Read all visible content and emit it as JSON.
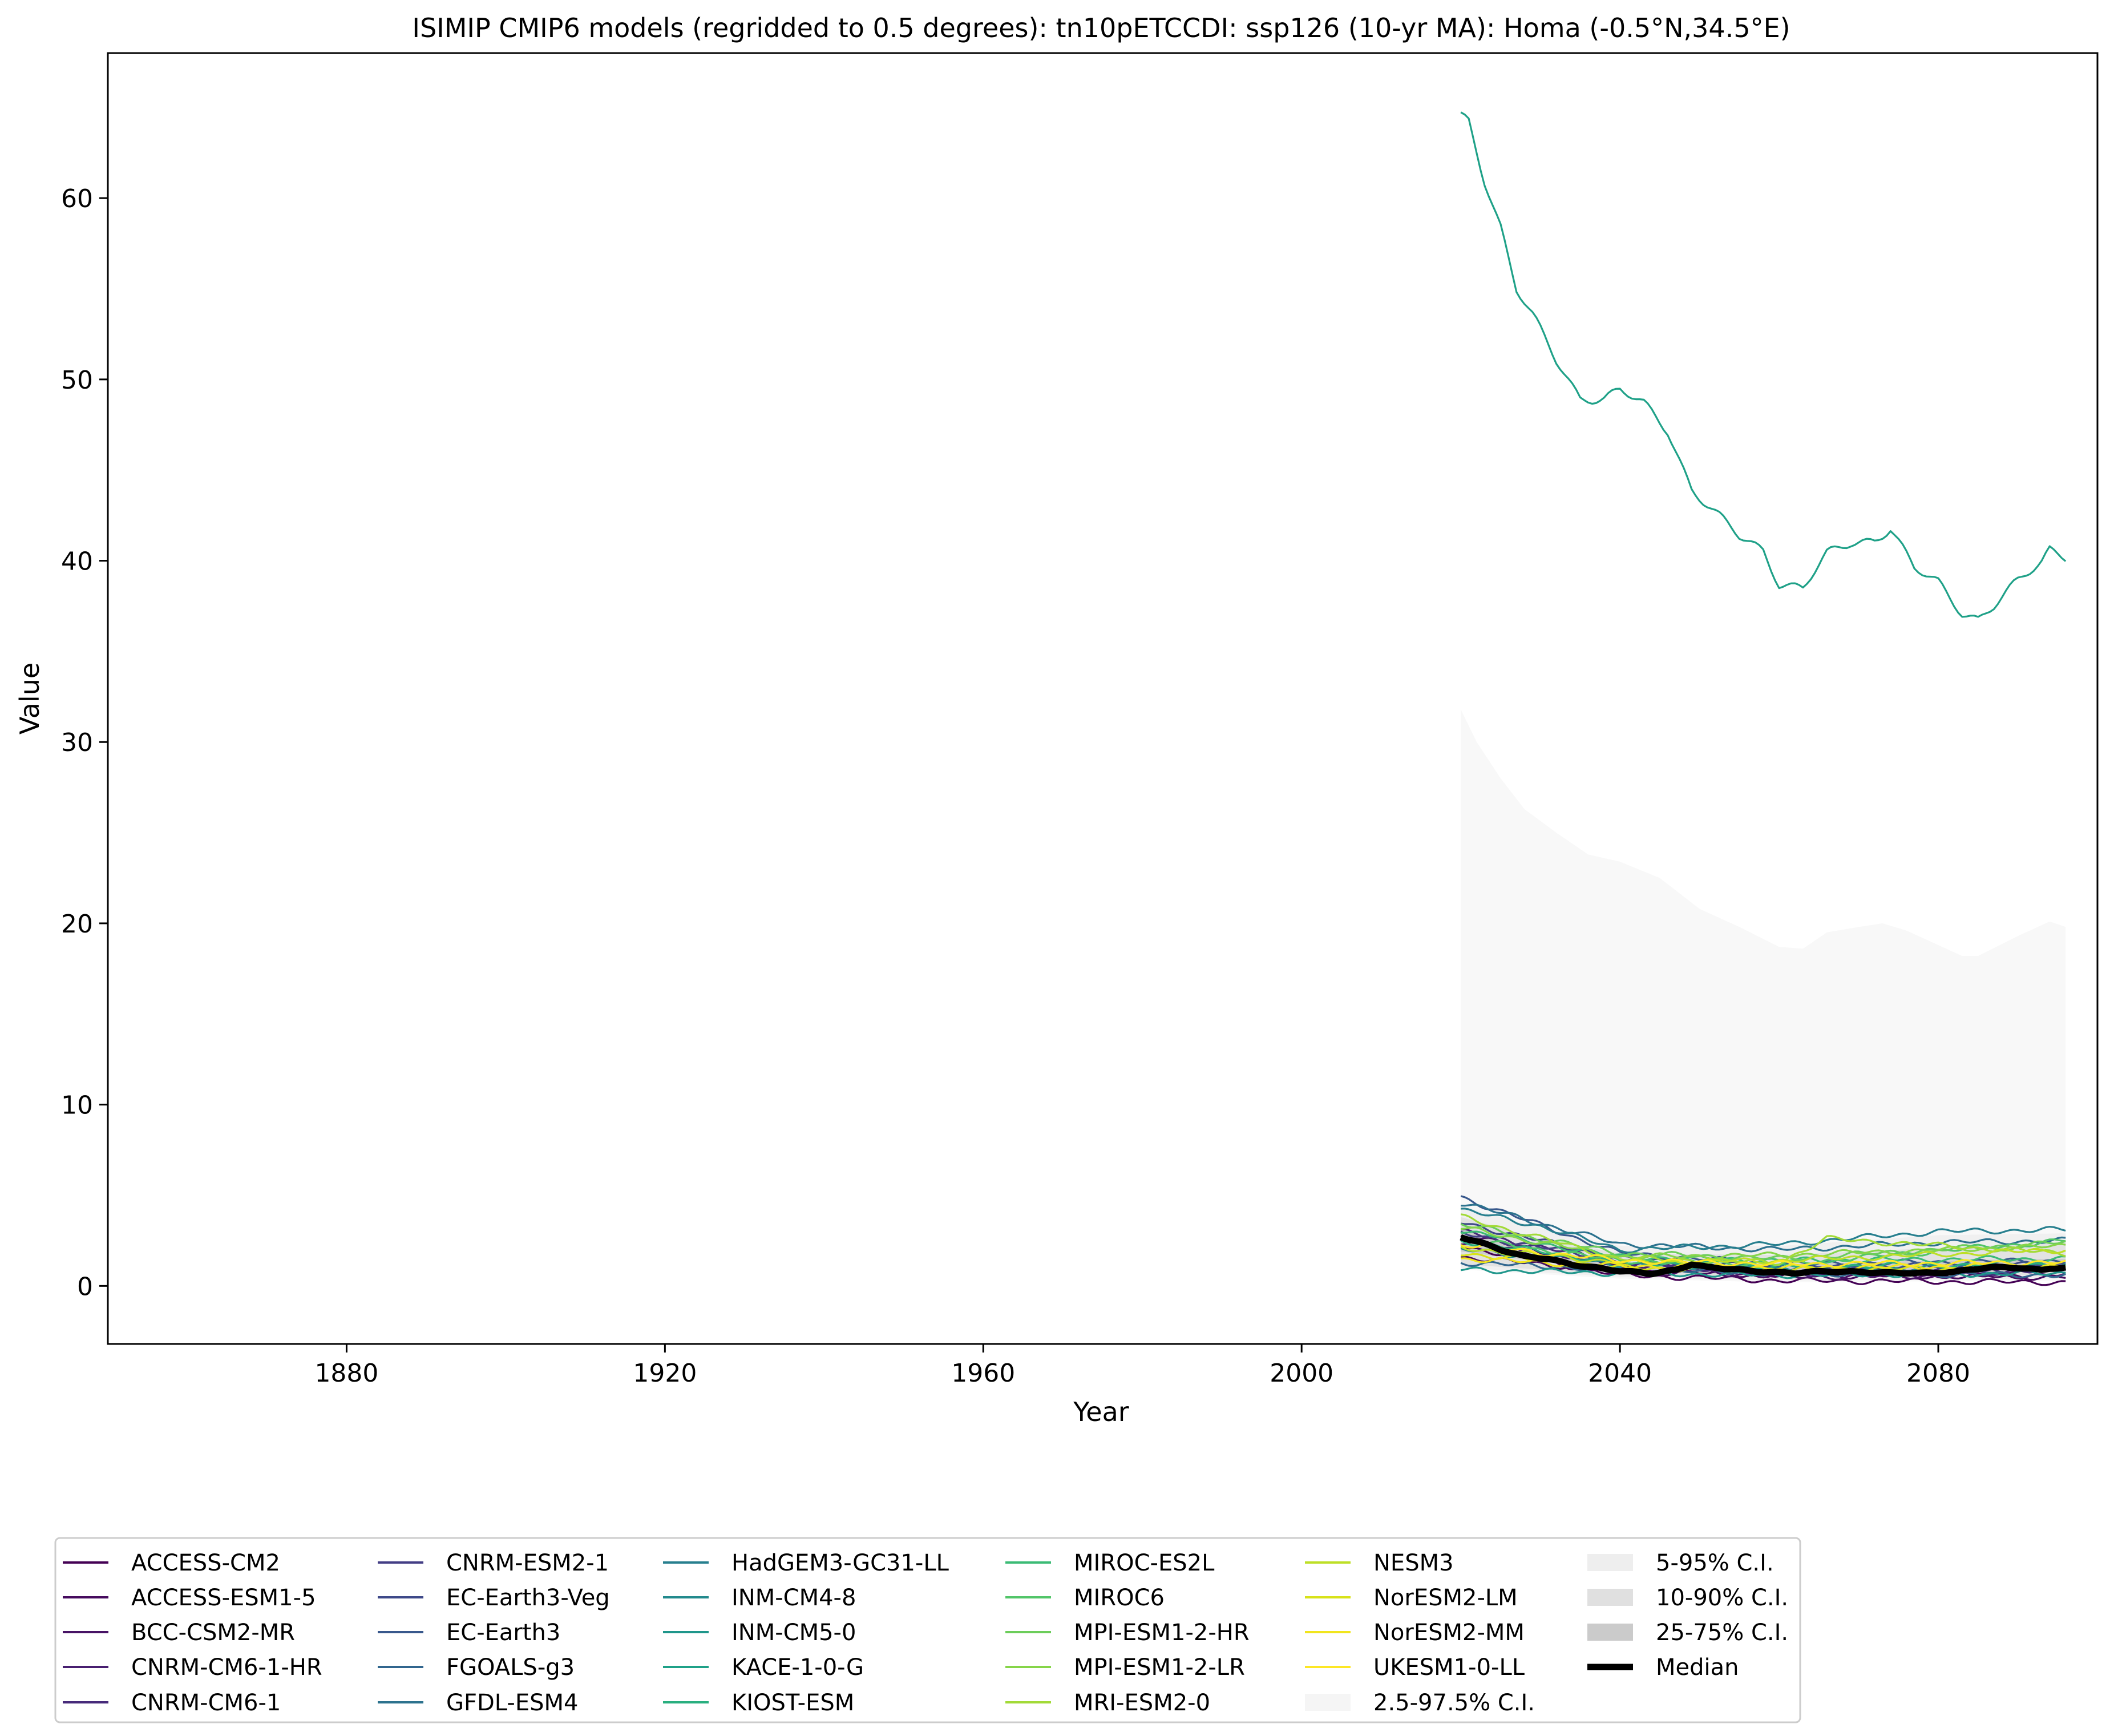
{
  "chart_data": {
    "type": "line",
    "title": "ISIMIP CMIP6 models (regridded to 0.5 degrees): tn10pETCCDI: ssp126 (10-yr MA): Homa (-0.5°N,34.5°E)",
    "xlabel": "Year",
    "ylabel": "Value",
    "xlim": [
      1850,
      2100
    ],
    "ylim": [
      -3.2,
      68
    ],
    "x_ticks": [
      1880,
      1920,
      1960,
      2000,
      2040,
      2080
    ],
    "y_ticks": [
      0,
      10,
      20,
      30,
      40,
      50,
      60
    ],
    "x_start": 2020,
    "x_end": 2096,
    "grid": false,
    "legend_position": "bottom",
    "series": [
      {
        "name": "ACCESS-CM2",
        "color": "#440154",
        "keypoints": [
          [
            2020,
            2.2
          ],
          [
            2040,
            0.6
          ],
          [
            2060,
            0.3
          ],
          [
            2096,
            0.2
          ]
        ]
      },
      {
        "name": "ACCESS-ESM1-5",
        "color": "#460b5e",
        "keypoints": [
          [
            2020,
            1.6
          ],
          [
            2040,
            0.8
          ],
          [
            2060,
            0.6
          ],
          [
            2096,
            0.5
          ]
        ]
      },
      {
        "name": "BCC-CSM2-MR",
        "color": "#471365",
        "keypoints": [
          [
            2020,
            2.8
          ],
          [
            2040,
            1.1
          ],
          [
            2060,
            0.5
          ],
          [
            2096,
            0.6
          ]
        ]
      },
      {
        "name": "CNRM-CM6-1-HR",
        "color": "#481f70",
        "keypoints": [
          [
            2020,
            2.4
          ],
          [
            2040,
            1.2
          ],
          [
            2060,
            0.8
          ],
          [
            2096,
            0.9
          ]
        ]
      },
      {
        "name": "CNRM-CM6-1",
        "color": "#472a7a",
        "keypoints": [
          [
            2020,
            3.0
          ],
          [
            2040,
            1.3
          ],
          [
            2060,
            0.7
          ],
          [
            2096,
            0.8
          ]
        ]
      },
      {
        "name": "CNRM-ESM2-1",
        "color": "#433e85",
        "keypoints": [
          [
            2020,
            2.9
          ],
          [
            2040,
            1.4
          ],
          [
            2060,
            0.9
          ],
          [
            2096,
            1.0
          ]
        ]
      },
      {
        "name": "EC-Earth3-Veg",
        "color": "#3e4989",
        "keypoints": [
          [
            2020,
            3.5
          ],
          [
            2040,
            1.5
          ],
          [
            2060,
            1.0
          ],
          [
            2096,
            1.2
          ]
        ]
      },
      {
        "name": "EC-Earth3",
        "color": "#38588c",
        "keypoints": [
          [
            2020,
            4.9
          ],
          [
            2040,
            1.8
          ],
          [
            2060,
            1.2
          ],
          [
            2096,
            1.4
          ]
        ]
      },
      {
        "name": "FGOALS-g3",
        "color": "#31668e",
        "keypoints": [
          [
            2020,
            1.3
          ],
          [
            2040,
            0.9
          ],
          [
            2060,
            0.7
          ],
          [
            2096,
            0.6
          ]
        ]
      },
      {
        "name": "GFDL-ESM4",
        "color": "#2c728e",
        "keypoints": [
          [
            2020,
            4.6
          ],
          [
            2040,
            2.3
          ],
          [
            2060,
            2.0
          ],
          [
            2080,
            2.4
          ],
          [
            2096,
            2.5
          ]
        ]
      },
      {
        "name": "HadGEM3-GC31-LL",
        "color": "#277f8e",
        "keypoints": [
          [
            2020,
            4.2
          ],
          [
            2030,
            3.3
          ],
          [
            2040,
            2.0
          ],
          [
            2060,
            2.3
          ],
          [
            2080,
            3.0
          ],
          [
            2096,
            3.1
          ]
        ]
      },
      {
        "name": "INM-CM4-8",
        "color": "#238a8d",
        "keypoints": [
          [
            2020,
            2.0
          ],
          [
            2040,
            1.2
          ],
          [
            2060,
            0.9
          ],
          [
            2096,
            1.1
          ]
        ]
      },
      {
        "name": "INM-CM5-0",
        "color": "#1f968b",
        "keypoints": [
          [
            2020,
            0.9
          ],
          [
            2040,
            0.7
          ],
          [
            2060,
            0.6
          ],
          [
            2096,
            0.7
          ]
        ]
      },
      {
        "name": "KACE-1-0-G",
        "color": "#1fa188",
        "keypoints": [
          [
            2020,
            64.5
          ],
          [
            2021,
            64.2
          ],
          [
            2023,
            61
          ],
          [
            2025,
            58.5
          ],
          [
            2027,
            55
          ],
          [
            2029,
            53.5
          ],
          [
            2032,
            51
          ],
          [
            2035,
            49
          ],
          [
            2038,
            49
          ],
          [
            2040,
            49.4
          ],
          [
            2043,
            48.6
          ],
          [
            2046,
            47.2
          ],
          [
            2049,
            44
          ],
          [
            2052,
            42.6
          ],
          [
            2055,
            41.3
          ],
          [
            2058,
            40.6
          ],
          [
            2060,
            38.8
          ],
          [
            2063,
            38.5
          ],
          [
            2066,
            40.3
          ],
          [
            2069,
            41
          ],
          [
            2072,
            41.2
          ],
          [
            2074,
            41.8
          ],
          [
            2077,
            39.5
          ],
          [
            2080,
            38.8
          ],
          [
            2083,
            37.2
          ],
          [
            2085,
            36.8
          ],
          [
            2087,
            37.5
          ],
          [
            2090,
            38.8
          ],
          [
            2093,
            40
          ],
          [
            2094,
            40.7
          ],
          [
            2096,
            40.3
          ]
        ]
      },
      {
        "name": "KIOST-ESM",
        "color": "#29af7f",
        "keypoints": [
          [
            2020,
            2.5
          ],
          [
            2040,
            1.3
          ],
          [
            2060,
            1.1
          ],
          [
            2096,
            1.2
          ]
        ]
      },
      {
        "name": "MIROC-ES2L",
        "color": "#3bbb75",
        "keypoints": [
          [
            2020,
            3.1
          ],
          [
            2040,
            1.6
          ],
          [
            2060,
            1.4
          ],
          [
            2096,
            1.5
          ]
        ]
      },
      {
        "name": "MIROC6",
        "color": "#52c569",
        "keypoints": [
          [
            2020,
            2.6
          ],
          [
            2040,
            1.4
          ],
          [
            2060,
            1.2
          ],
          [
            2096,
            2.5
          ]
        ]
      },
      {
        "name": "MPI-ESM1-2-HR",
        "color": "#6ccd5a",
        "keypoints": [
          [
            2020,
            3.4
          ],
          [
            2040,
            1.8
          ],
          [
            2060,
            1.5
          ],
          [
            2096,
            2.4
          ]
        ]
      },
      {
        "name": "MPI-ESM1-2-LR",
        "color": "#86d549",
        "keypoints": [
          [
            2020,
            3.2
          ],
          [
            2040,
            1.6
          ],
          [
            2060,
            1.7
          ],
          [
            2096,
            2.2
          ]
        ]
      },
      {
        "name": "MRI-ESM2-0",
        "color": "#a2da37",
        "keypoints": [
          [
            2020,
            3.8
          ],
          [
            2040,
            1.5
          ],
          [
            2060,
            1.3
          ],
          [
            2066,
            2.6
          ],
          [
            2096,
            1.8
          ]
        ]
      },
      {
        "name": "NESM3",
        "color": "#bddf26",
        "keypoints": [
          [
            2020,
            2.1
          ],
          [
            2040,
            1.3
          ],
          [
            2060,
            1.4
          ],
          [
            2096,
            2.0
          ]
        ]
      },
      {
        "name": "NorESM2-LM",
        "color": "#d8e219",
        "keypoints": [
          [
            2020,
            1.8
          ],
          [
            2040,
            1.0
          ],
          [
            2060,
            0.9
          ],
          [
            2096,
            1.0
          ]
        ]
      },
      {
        "name": "NorESM2-MM",
        "color": "#f1e51d",
        "keypoints": [
          [
            2020,
            1.5
          ],
          [
            2040,
            1.1
          ],
          [
            2060,
            1.0
          ],
          [
            2096,
            1.1
          ]
        ]
      },
      {
        "name": "UKESM1-0-LL",
        "color": "#fde725",
        "keypoints": [
          [
            2020,
            2.3
          ],
          [
            2040,
            1.4
          ],
          [
            2060,
            1.2
          ],
          [
            2096,
            1.3
          ]
        ]
      }
    ],
    "bands": [
      {
        "name": "2.5-97.5% C.I.",
        "color": "#f8f8f8",
        "lower": [
          [
            2020,
            0.9
          ],
          [
            2040,
            0.4
          ],
          [
            2060,
            0.2
          ],
          [
            2096,
            0.3
          ]
        ],
        "upper": [
          [
            2020,
            31.8
          ],
          [
            2022,
            30
          ],
          [
            2025,
            28
          ],
          [
            2028,
            26.3
          ],
          [
            2032,
            25
          ],
          [
            2036,
            23.8
          ],
          [
            2040,
            23.4
          ],
          [
            2045,
            22.5
          ],
          [
            2050,
            20.8
          ],
          [
            2055,
            19.8
          ],
          [
            2060,
            18.7
          ],
          [
            2063,
            18.6
          ],
          [
            2066,
            19.5
          ],
          [
            2070,
            19.8
          ],
          [
            2073,
            20
          ],
          [
            2076,
            19.6
          ],
          [
            2080,
            18.8
          ],
          [
            2083,
            18.2
          ],
          [
            2085,
            18.2
          ],
          [
            2090,
            19.3
          ],
          [
            2094,
            20.1
          ],
          [
            2096,
            19.8
          ]
        ]
      },
      {
        "name": "5-95% C.I.",
        "color": "#f0f0f0",
        "lower": [
          [
            2020,
            1.0
          ],
          [
            2040,
            0.5
          ],
          [
            2060,
            0.3
          ],
          [
            2096,
            0.4
          ]
        ],
        "upper": [
          [
            2020,
            4.4
          ],
          [
            2030,
            3.2
          ],
          [
            2040,
            2.2
          ],
          [
            2060,
            2.2
          ],
          [
            2080,
            2.8
          ],
          [
            2096,
            2.9
          ]
        ]
      },
      {
        "name": "10-90% C.I.",
        "color": "#e2e2e2",
        "lower": [
          [
            2020,
            1.2
          ],
          [
            2040,
            0.6
          ],
          [
            2060,
            0.5
          ],
          [
            2096,
            0.6
          ]
        ],
        "upper": [
          [
            2020,
            3.8
          ],
          [
            2030,
            2.6
          ],
          [
            2040,
            1.8
          ],
          [
            2060,
            1.7
          ],
          [
            2080,
            2.1
          ],
          [
            2096,
            2.4
          ]
        ]
      },
      {
        "name": "25-75% C.I.",
        "color": "#cccccc",
        "lower": [
          [
            2020,
            1.9
          ],
          [
            2040,
            0.8
          ],
          [
            2060,
            0.6
          ],
          [
            2096,
            0.8
          ]
        ],
        "upper": [
          [
            2020,
            3.1
          ],
          [
            2030,
            1.9
          ],
          [
            2040,
            1.3
          ],
          [
            2060,
            1.2
          ],
          [
            2080,
            1.4
          ],
          [
            2096,
            1.5
          ]
        ]
      }
    ],
    "median": {
      "name": "Median",
      "color": "#000000",
      "keypoints": [
        [
          2020,
          2.7
        ],
        [
          2022,
          2.5
        ],
        [
          2025,
          2.0
        ],
        [
          2028,
          1.6
        ],
        [
          2031,
          1.5
        ],
        [
          2034,
          1.2
        ],
        [
          2037,
          1.0
        ],
        [
          2040,
          0.8
        ],
        [
          2044,
          0.7
        ],
        [
          2047,
          0.9
        ],
        [
          2049,
          1.2
        ],
        [
          2051,
          1.0
        ],
        [
          2055,
          0.9
        ],
        [
          2058,
          0.8
        ],
        [
          2062,
          0.7
        ],
        [
          2066,
          0.8
        ],
        [
          2070,
          0.8
        ],
        [
          2074,
          0.7
        ],
        [
          2078,
          0.7
        ],
        [
          2082,
          0.8
        ],
        [
          2086,
          1.0
        ],
        [
          2090,
          1.0
        ],
        [
          2093,
          0.9
        ],
        [
          2094,
          1.0
        ],
        [
          2096,
          1.0
        ]
      ]
    },
    "legend": {
      "columns": [
        [
          "ACCESS-CM2",
          "ACCESS-ESM1-5",
          "BCC-CSM2-MR",
          "CNRM-CM6-1-HR",
          "CNRM-CM6-1"
        ],
        [
          "CNRM-ESM2-1",
          "EC-Earth3-Veg",
          "EC-Earth3",
          "FGOALS-g3",
          "GFDL-ESM4"
        ],
        [
          "HadGEM3-GC31-LL",
          "INM-CM4-8",
          "INM-CM5-0",
          "KACE-1-0-G",
          "KIOST-ESM"
        ],
        [
          "MIROC-ES2L",
          "MIROC6",
          "MPI-ESM1-2-HR",
          "MPI-ESM1-2-LR",
          "MRI-ESM2-0"
        ],
        [
          "NESM3",
          "NorESM2-LM",
          "NorESM2-MM",
          "UKESM1-0-LL",
          "2.5-97.5% C.I."
        ],
        [
          "5-95% C.I.",
          "10-90% C.I.",
          "25-75% C.I.",
          "Median"
        ]
      ]
    }
  }
}
